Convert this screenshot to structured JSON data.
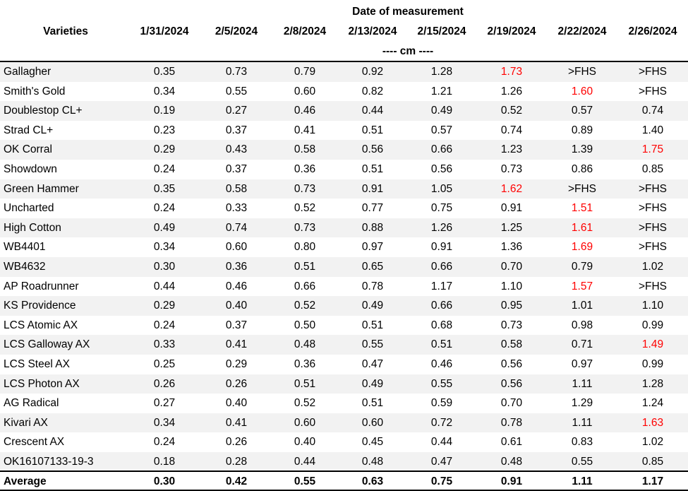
{
  "table": {
    "title": "Date of measurement",
    "row_header": "Varieties",
    "columns": [
      "1/31/2024",
      "2/5/2024",
      "2/8/2024",
      "2/13/2024",
      "2/15/2024",
      "2/19/2024",
      "2/22/2024",
      "2/26/2024"
    ],
    "unit": "---- cm ----",
    "rows": [
      {
        "variety": "Gallagher",
        "cells": [
          "0.35",
          "0.73",
          "0.79",
          "0.92",
          "1.28",
          {
            "text": "1.73",
            "color": "#ff0000"
          },
          ">FHS",
          ">FHS"
        ]
      },
      {
        "variety": "Smith's Gold",
        "cells": [
          "0.34",
          "0.55",
          "0.60",
          "0.82",
          "1.21",
          "1.26",
          {
            "text": "1.60",
            "color": "#ff0000"
          },
          ">FHS"
        ]
      },
      {
        "variety": "Doublestop CL+",
        "cells": [
          "0.19",
          "0.27",
          "0.46",
          "0.44",
          "0.49",
          "0.52",
          "0.57",
          "0.74"
        ]
      },
      {
        "variety": "Strad CL+",
        "cells": [
          "0.23",
          "0.37",
          "0.41",
          "0.51",
          "0.57",
          "0.74",
          "0.89",
          "1.40"
        ]
      },
      {
        "variety": "OK Corral",
        "cells": [
          "0.29",
          "0.43",
          "0.58",
          "0.56",
          "0.66",
          "1.23",
          "1.39",
          {
            "text": "1.75",
            "color": "#ff0000"
          }
        ]
      },
      {
        "variety": "Showdown",
        "cells": [
          "0.24",
          "0.37",
          "0.36",
          "0.51",
          "0.56",
          "0.73",
          "0.86",
          "0.85"
        ]
      },
      {
        "variety": "Green Hammer",
        "cells": [
          "0.35",
          "0.58",
          "0.73",
          "0.91",
          "1.05",
          {
            "text": "1.62",
            "color": "#ff0000"
          },
          ">FHS",
          ">FHS"
        ]
      },
      {
        "variety": "Uncharted",
        "cells": [
          "0.24",
          "0.33",
          "0.52",
          "0.77",
          "0.75",
          "0.91",
          {
            "text": "1.51",
            "color": "#ff0000"
          },
          ">FHS"
        ]
      },
      {
        "variety": "High Cotton",
        "cells": [
          "0.49",
          "0.74",
          "0.73",
          "0.88",
          "1.26",
          "1.25",
          {
            "text": "1.61",
            "color": "#ff0000"
          },
          ">FHS"
        ]
      },
      {
        "variety": "WB4401",
        "cells": [
          "0.34",
          "0.60",
          "0.80",
          "0.97",
          "0.91",
          "1.36",
          {
            "text": "1.69",
            "color": "#ff0000"
          },
          ">FHS"
        ]
      },
      {
        "variety": "WB4632",
        "cells": [
          "0.30",
          "0.36",
          "0.51",
          "0.65",
          "0.66",
          "0.70",
          "0.79",
          "1.02"
        ]
      },
      {
        "variety": "AP Roadrunner",
        "cells": [
          "0.44",
          "0.46",
          "0.66",
          "0.78",
          "1.17",
          "1.10",
          {
            "text": "1.57",
            "color": "#ff0000"
          },
          ">FHS"
        ]
      },
      {
        "variety": "KS Providence",
        "cells": [
          "0.29",
          "0.40",
          "0.52",
          "0.49",
          "0.66",
          "0.95",
          "1.01",
          "1.10"
        ]
      },
      {
        "variety": "LCS Atomic AX",
        "cells": [
          "0.24",
          "0.37",
          "0.50",
          "0.51",
          "0.68",
          "0.73",
          "0.98",
          "0.99"
        ]
      },
      {
        "variety": "LCS Galloway AX",
        "cells": [
          "0.33",
          "0.41",
          "0.48",
          "0.55",
          "0.51",
          "0.58",
          "0.71",
          {
            "text": "1.49",
            "color": "#ff0000"
          }
        ]
      },
      {
        "variety": "LCS Steel AX",
        "cells": [
          "0.25",
          "0.29",
          "0.36",
          "0.47",
          "0.46",
          "0.56",
          "0.97",
          "0.99"
        ]
      },
      {
        "variety": "LCS Photon AX",
        "cells": [
          "0.26",
          "0.26",
          "0.51",
          "0.49",
          "0.55",
          "0.56",
          "1.11",
          "1.28"
        ]
      },
      {
        "variety": "AG Radical",
        "cells": [
          "0.27",
          "0.40",
          "0.52",
          "0.51",
          "0.59",
          "0.70",
          "1.29",
          "1.24"
        ]
      },
      {
        "variety": "Kivari AX",
        "cells": [
          "0.34",
          "0.41",
          "0.60",
          "0.60",
          "0.72",
          "0.78",
          "1.11",
          {
            "text": "1.63",
            "color": "#ff0000"
          }
        ]
      },
      {
        "variety": "Crescent AX",
        "cells": [
          "0.24",
          "0.26",
          "0.40",
          "0.45",
          "0.44",
          "0.61",
          "0.83",
          "1.02"
        ]
      },
      {
        "variety": "OK16107133-19-3",
        "cells": [
          "0.18",
          "0.28",
          "0.44",
          "0.48",
          "0.47",
          "0.48",
          "0.55",
          "0.85"
        ]
      }
    ],
    "average": {
      "label": "Average",
      "cells": [
        "0.30",
        "0.42",
        "0.55",
        "0.63",
        "0.75",
        "0.91",
        "1.11",
        "1.17"
      ]
    }
  }
}
